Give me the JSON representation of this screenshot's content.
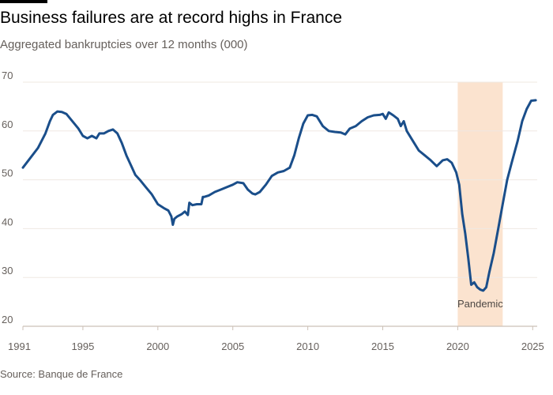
{
  "chart_data": {
    "type": "line",
    "title": "Business failures are at record highs in France",
    "subtitle": "Aggregated bankruptcies over 12 months (000)",
    "source": "Source: Banque de France",
    "xlim": [
      1991,
      2025.3
    ],
    "ylim": [
      20,
      70
    ],
    "yticks": [
      70,
      60,
      50,
      40,
      30,
      20
    ],
    "xticks": [
      1991,
      1995,
      2000,
      2005,
      2010,
      2015,
      2020,
      2025
    ],
    "grid": true,
    "line_color": "#1a4e8a",
    "shade_color": "#fbe3cf",
    "annotation": {
      "label": "Pandemic",
      "x_start": 2020.0,
      "x_end": 2023.0
    },
    "series": [
      {
        "x": [
          1991.0,
          1991.5,
          1992.0,
          1992.5,
          1992.8,
          1993.0,
          1993.3,
          1993.6,
          1993.9,
          1994.3,
          1994.7,
          1995.0,
          1995.3,
          1995.6,
          1995.9,
          1996.1,
          1996.4,
          1996.7,
          1997.0,
          1997.3,
          1997.6,
          1997.9,
          1998.2,
          1998.5,
          1998.8,
          1999.2,
          1999.6,
          2000.0,
          2000.4,
          2000.7,
          2000.9,
          2001.0,
          2001.1,
          2001.3,
          2001.6,
          2001.8,
          2002.0,
          2002.1,
          2002.3,
          2002.6,
          2002.9,
          2003.0,
          2003.1,
          2003.4,
          2003.8,
          2004.2,
          2004.6,
          2005.0,
          2005.3,
          2005.7,
          2006.0,
          2006.3,
          2006.5,
          2006.8,
          2007.2,
          2007.6,
          2008.0,
          2008.4,
          2008.8,
          2009.1,
          2009.4,
          2009.7,
          2010.0,
          2010.3,
          2010.6,
          2011.0,
          2011.4,
          2011.8,
          2012.2,
          2012.5,
          2012.8,
          2013.2,
          2013.6,
          2014.0,
          2014.4,
          2014.8,
          2015.0,
          2015.2,
          2015.4,
          2015.7,
          2016.0,
          2016.2,
          2016.4,
          2016.6,
          2017.0,
          2017.4,
          2017.8,
          2018.2,
          2018.6,
          2019.0,
          2019.3,
          2019.6,
          2019.9,
          2020.1,
          2020.3,
          2020.5,
          2020.7,
          2020.9,
          2021.1,
          2021.3,
          2021.5,
          2021.7,
          2021.9,
          2022.1,
          2022.4,
          2022.7,
          2023.0,
          2023.3,
          2023.6,
          2024.0,
          2024.3,
          2024.6,
          2024.9,
          2025.2
        ],
        "y": [
          52.5,
          54.5,
          56.5,
          59.5,
          62.0,
          63.3,
          64.0,
          63.9,
          63.5,
          62.0,
          60.5,
          59.0,
          58.5,
          59.0,
          58.5,
          59.5,
          59.5,
          60.0,
          60.3,
          59.5,
          57.5,
          55.0,
          53.0,
          51.0,
          50.0,
          48.5,
          47.0,
          45.0,
          44.2,
          43.7,
          42.5,
          40.8,
          42.0,
          42.5,
          43.0,
          43.5,
          42.8,
          45.3,
          44.8,
          45.0,
          45.0,
          46.5,
          46.5,
          46.8,
          47.5,
          48.0,
          48.5,
          49.0,
          49.5,
          49.3,
          48.0,
          47.2,
          47.0,
          47.5,
          49.0,
          50.8,
          51.5,
          51.8,
          52.5,
          55.0,
          58.5,
          61.5,
          63.2,
          63.3,
          63.0,
          61.0,
          60.0,
          59.8,
          59.7,
          59.3,
          60.5,
          61.0,
          62.0,
          62.8,
          63.2,
          63.3,
          63.5,
          62.5,
          63.8,
          63.2,
          62.5,
          61.0,
          62.0,
          60.0,
          58.0,
          56.0,
          55.0,
          54.0,
          52.8,
          54.0,
          54.2,
          53.5,
          51.5,
          49.0,
          43.0,
          39.0,
          34.0,
          28.5,
          29.0,
          28.0,
          27.5,
          27.3,
          28.0,
          31.0,
          35.0,
          40.0,
          45.0,
          50.0,
          53.5,
          58.0,
          62.0,
          64.5,
          66.2,
          66.3
        ]
      }
    ]
  }
}
